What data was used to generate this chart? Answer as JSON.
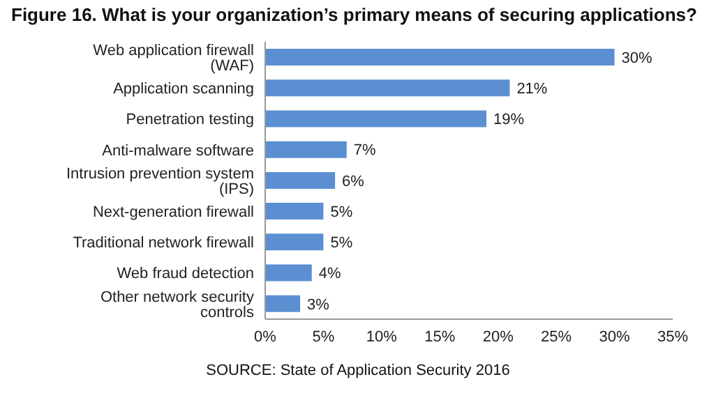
{
  "chart_data": {
    "type": "bar",
    "orientation": "horizontal",
    "title": "Figure 16. What is your organization’s primary means of securing applications?",
    "categories": [
      "Web application firewall (WAF)",
      "Application scanning",
      "Penetration testing",
      "Anti-malware software",
      "Intrusion prevention system (IPS)",
      "Next-generation firewall",
      "Traditional network firewall",
      "Web fraud detection",
      "Other network security controls"
    ],
    "values": [
      30,
      21,
      19,
      7,
      6,
      5,
      5,
      4,
      3
    ],
    "value_labels": [
      "30%",
      "21%",
      "19%",
      "7%",
      "6%",
      "5%",
      "5%",
      "4%",
      "3%"
    ],
    "color": "#5b8fd2",
    "xlim": [
      0,
      35
    ],
    "xticks": [
      {
        "value": 0,
        "label": "0%"
      },
      {
        "value": 5,
        "label": "5%"
      },
      {
        "value": 10,
        "label": "10%"
      },
      {
        "value": 15,
        "label": "15%"
      },
      {
        "value": 20,
        "label": "20%"
      },
      {
        "value": 25,
        "label": "25%"
      },
      {
        "value": 30,
        "label": "30%"
      },
      {
        "value": 35,
        "label": "35%"
      }
    ],
    "grid": false,
    "annotations": [
      "SOURCE: State of Application Security 2016"
    ]
  }
}
